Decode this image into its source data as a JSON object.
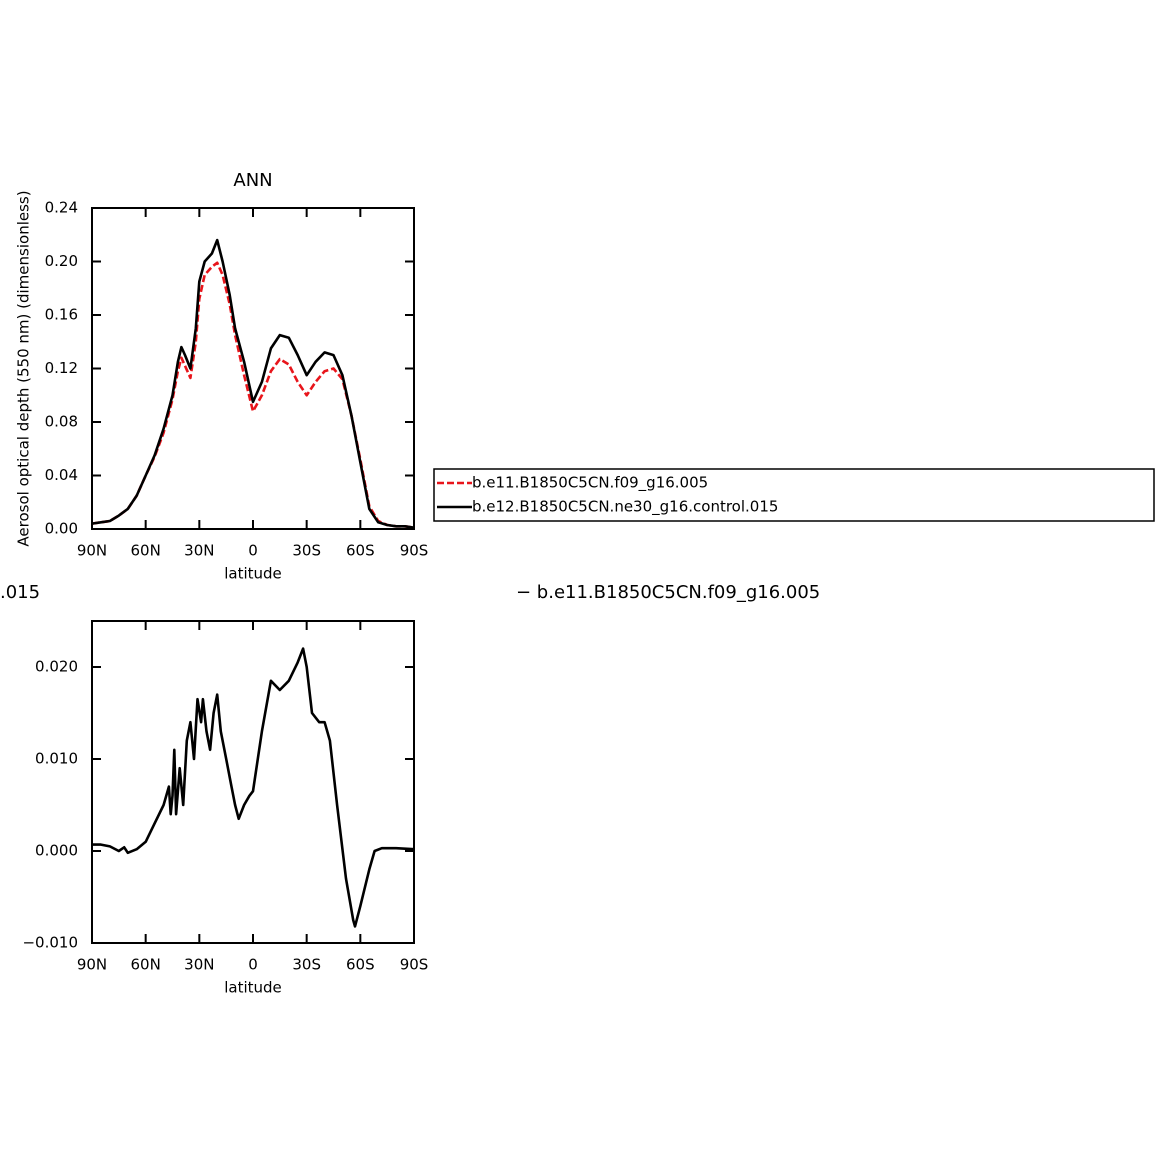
{
  "chart_data": [
    {
      "type": "line",
      "title": "ANN",
      "xlabel": "latitude",
      "ylabel": "Aerosol optical depth (550 nm) (dimensionless)",
      "x": [
        90,
        85,
        80,
        75,
        70,
        65,
        60,
        55,
        50,
        45,
        42,
        40,
        38,
        35,
        32,
        30,
        27,
        23,
        20,
        17,
        13,
        10,
        5,
        0,
        -5,
        -10,
        -15,
        -20,
        -25,
        -30,
        -35,
        -40,
        -45,
        -50,
        -55,
        -60,
        -65,
        -70,
        -75,
        -80,
        -85,
        -90
      ],
      "series": [
        {
          "name": "b.e11.B1850C5CN.f09_g16.005",
          "color": "#e8151b",
          "style": "dashed",
          "values": [
            0.004,
            0.005,
            0.006,
            0.01,
            0.015,
            0.025,
            0.04,
            0.054,
            0.072,
            0.097,
            0.118,
            0.128,
            0.122,
            0.113,
            0.14,
            0.172,
            0.19,
            0.196,
            0.199,
            0.19,
            0.168,
            0.145,
            0.115,
            0.088,
            0.1,
            0.118,
            0.127,
            0.123,
            0.11,
            0.1,
            0.11,
            0.118,
            0.12,
            0.112,
            0.085,
            0.052,
            0.017,
            0.006,
            0.003,
            0.002,
            0.002,
            0.001
          ]
        },
        {
          "name": "b.e12.B1850C5CN.ne30_g16.control.015",
          "color": "#000000",
          "style": "solid",
          "values": [
            0.004,
            0.005,
            0.006,
            0.01,
            0.015,
            0.025,
            0.04,
            0.055,
            0.075,
            0.1,
            0.125,
            0.136,
            0.13,
            0.12,
            0.15,
            0.185,
            0.2,
            0.206,
            0.216,
            0.2,
            0.175,
            0.15,
            0.125,
            0.095,
            0.11,
            0.135,
            0.145,
            0.143,
            0.13,
            0.115,
            0.125,
            0.132,
            0.13,
            0.115,
            0.085,
            0.05,
            0.015,
            0.005,
            0.003,
            0.002,
            0.002,
            0.001
          ]
        }
      ],
      "xlim": [
        90,
        -90
      ],
      "xticks": [
        {
          "value": 90,
          "label": "90N"
        },
        {
          "value": 60,
          "label": "60N"
        },
        {
          "value": 30,
          "label": "30N"
        },
        0,
        {
          "value": -30,
          "label": "30S"
        },
        {
          "value": -60,
          "label": "60S"
        },
        {
          "value": -90,
          "label": "90S"
        }
      ],
      "ylim": [
        0,
        0.24
      ],
      "yticks": [
        {
          "value": 0,
          "label": "0.00"
        },
        {
          "value": 0.04,
          "label": "0.04"
        },
        {
          "value": 0.08,
          "label": "0.08"
        },
        {
          "value": 0.12,
          "label": "0.12"
        },
        {
          "value": 0.16,
          "label": "0.16"
        },
        {
          "value": 0.2,
          "label": "0.20"
        },
        {
          "value": 0.24,
          "label": "0.24"
        }
      ],
      "legend": "right"
    },
    {
      "type": "line",
      "title_parts": [
        ".015",
        "− b.e11.B1850C5CN.f09_g16.005"
      ],
      "xlabel": "latitude",
      "x": [
        90,
        85,
        80,
        75,
        72,
        70,
        65,
        60,
        55,
        50,
        47,
        46,
        45,
        44,
        43,
        41,
        39,
        37,
        35,
        33,
        31,
        29,
        28,
        26,
        24,
        22,
        20,
        18,
        15,
        12,
        10,
        8,
        5,
        2,
        0,
        -5,
        -10,
        -15,
        -20,
        -25,
        -28,
        -30,
        -33,
        -37,
        -40,
        -43,
        -47,
        -52,
        -56,
        -57,
        -60,
        -65,
        -68,
        -72,
        -80,
        -90
      ],
      "series": [
        {
          "color": "#000000",
          "style": "solid",
          "values": [
            0.0007,
            0.0007,
            0.0005,
            0,
            0.0004,
            -0.0002,
            0.0002,
            0.001,
            0.003,
            0.005,
            0.007,
            0.004,
            0.006,
            0.011,
            0.004,
            0.009,
            0.005,
            0.012,
            0.014,
            0.01,
            0.0165,
            0.014,
            0.0165,
            0.013,
            0.011,
            0.015,
            0.017,
            0.013,
            0.01,
            0.007,
            0.005,
            0.0035,
            0.005,
            0.006,
            0.0065,
            0.013,
            0.0185,
            0.0175,
            0.0185,
            0.0205,
            0.022,
            0.02,
            0.015,
            0.014,
            0.014,
            0.012,
            0.005,
            -0.003,
            -0.0075,
            -0.0082,
            -0.006,
            -0.002,
            0,
            0.0003,
            0.0003,
            0.0002
          ]
        }
      ],
      "xlim": [
        90,
        -90
      ],
      "xticks": [
        {
          "value": 90,
          "label": "90N"
        },
        {
          "value": 60,
          "label": "60N"
        },
        {
          "value": 30,
          "label": "30N"
        },
        0,
        {
          "value": -30,
          "label": "30S"
        },
        {
          "value": -60,
          "label": "60S"
        },
        {
          "value": -90,
          "label": "90S"
        }
      ],
      "ylim": [
        -0.01,
        0.025
      ],
      "yticks": [
        {
          "value": -0.01,
          "label": "−0.010"
        },
        {
          "value": 0,
          "label": "0.000"
        },
        {
          "value": 0.01,
          "label": "0.010"
        },
        {
          "value": 0.02,
          "label": "0.020"
        }
      ]
    }
  ]
}
